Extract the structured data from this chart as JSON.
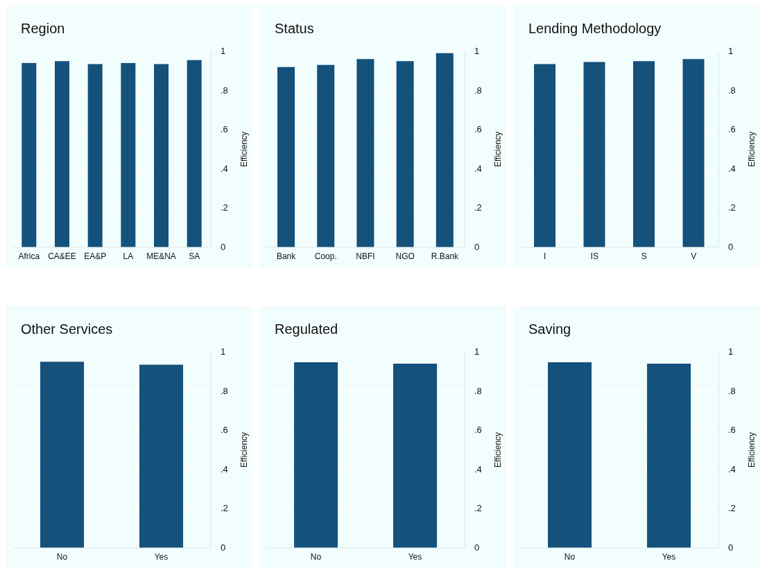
{
  "chart_data": [
    {
      "type": "bar",
      "title": "Region",
      "ylabel": "Efficiency",
      "categories": [
        "Africa",
        "CA&EE",
        "EA&P",
        "LA",
        "ME&NA",
        "SA"
      ],
      "values": [
        0.94,
        0.95,
        0.935,
        0.94,
        0.935,
        0.955
      ],
      "color": "#14517b",
      "ylim": [
        0,
        1
      ],
      "yticks": [
        {
          "value": 0,
          "label": "0"
        },
        {
          "value": 0.2,
          "label": ".2"
        },
        {
          "value": 0.4,
          "label": ".4"
        },
        {
          "value": 0.6,
          "label": ".6"
        },
        {
          "value": 0.8,
          "label": ".8"
        },
        {
          "value": 1,
          "label": "1"
        }
      ],
      "grid": "y"
    },
    {
      "type": "bar",
      "title": "Status",
      "ylabel": "Efficiency",
      "categories": [
        "Bank",
        "Coop.",
        "NBFI",
        "NGO",
        "R.Bank"
      ],
      "values": [
        0.92,
        0.93,
        0.96,
        0.95,
        0.99
      ],
      "color": "#14517b",
      "ylim": [
        0,
        1
      ],
      "yticks": [
        {
          "value": 0,
          "label": "0"
        },
        {
          "value": 0.2,
          "label": ".2"
        },
        {
          "value": 0.4,
          "label": ".4"
        },
        {
          "value": 0.6,
          "label": ".6"
        },
        {
          "value": 0.8,
          "label": ".8"
        },
        {
          "value": 1,
          "label": "1"
        }
      ],
      "grid": "y"
    },
    {
      "type": "bar",
      "title": "Lending Methodology",
      "ylabel": "Efficiency",
      "categories": [
        "I",
        "IS",
        "S",
        "V"
      ],
      "values": [
        0.935,
        0.945,
        0.95,
        0.96
      ],
      "color": "#14517b",
      "ylim": [
        0,
        1
      ],
      "yticks": [
        {
          "value": 0,
          "label": "0"
        },
        {
          "value": 0.2,
          "label": ".2"
        },
        {
          "value": 0.4,
          "label": ".4"
        },
        {
          "value": 0.6,
          "label": ".6"
        },
        {
          "value": 0.8,
          "label": ".8"
        },
        {
          "value": 1,
          "label": "1"
        }
      ],
      "grid": "y"
    },
    {
      "type": "bar",
      "title": "Other Services",
      "ylabel": "Efficiency",
      "categories": [
        "No",
        "Yes"
      ],
      "values": [
        0.95,
        0.935
      ],
      "color": "#14517b",
      "ylim": [
        0,
        1
      ],
      "yticks": [
        {
          "value": 0,
          "label": "0"
        },
        {
          "value": 0.2,
          "label": ".2"
        },
        {
          "value": 0.4,
          "label": ".4"
        },
        {
          "value": 0.6,
          "label": ".6"
        },
        {
          "value": 0.8,
          "label": ".8"
        },
        {
          "value": 1,
          "label": "1"
        }
      ],
      "grid": "y"
    },
    {
      "type": "bar",
      "title": "Regulated",
      "ylabel": "Efficiency",
      "categories": [
        "No",
        "Yes"
      ],
      "values": [
        0.947,
        0.94
      ],
      "color": "#14517b",
      "ylim": [
        0,
        1
      ],
      "yticks": [
        {
          "value": 0,
          "label": "0"
        },
        {
          "value": 0.2,
          "label": ".2"
        },
        {
          "value": 0.4,
          "label": ".4"
        },
        {
          "value": 0.6,
          "label": ".6"
        },
        {
          "value": 0.8,
          "label": ".8"
        },
        {
          "value": 1,
          "label": "1"
        }
      ],
      "grid": "y"
    },
    {
      "type": "bar",
      "title": "Saving",
      "ylabel": "Efficiency",
      "categories": [
        "No",
        "Yes"
      ],
      "values": [
        0.947,
        0.94
      ],
      "color": "#14517b",
      "ylim": [
        0,
        1
      ],
      "yticks": [
        {
          "value": 0,
          "label": "0"
        },
        {
          "value": 0.2,
          "label": ".2"
        },
        {
          "value": 0.4,
          "label": ".4"
        },
        {
          "value": 0.6,
          "label": ".6"
        },
        {
          "value": 0.8,
          "label": ".8"
        },
        {
          "value": 1,
          "label": "1"
        }
      ],
      "grid": "y"
    }
  ]
}
